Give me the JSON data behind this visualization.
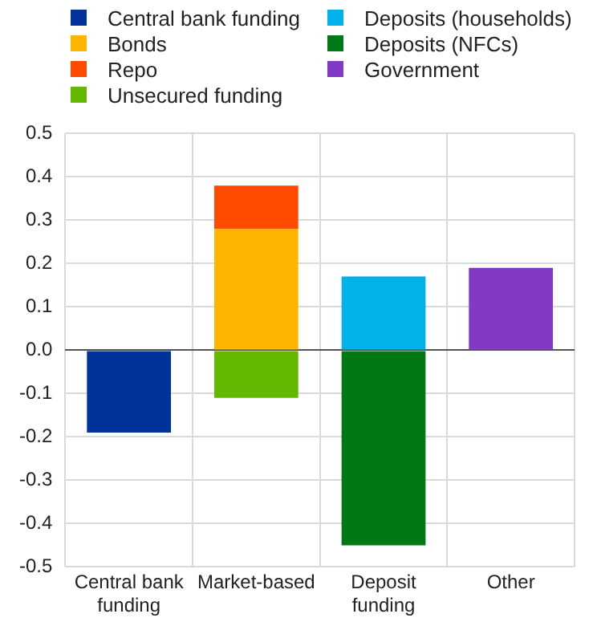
{
  "chart_data": {
    "type": "bar",
    "stacked": true,
    "categories": [
      "Central bank funding",
      "Market-based",
      "Deposit funding",
      "Other"
    ],
    "series": [
      {
        "name": "Central bank funding",
        "color": "#003399",
        "values": [
          -0.19,
          null,
          null,
          null
        ]
      },
      {
        "name": "Bonds",
        "color": "#ffb400",
        "values": [
          null,
          0.28,
          null,
          null
        ]
      },
      {
        "name": "Repo",
        "color": "#ff4b00",
        "values": [
          null,
          0.1,
          null,
          null
        ]
      },
      {
        "name": "Unsecured funding",
        "color": "#65b800",
        "values": [
          null,
          -0.11,
          null,
          null
        ]
      },
      {
        "name": "Deposits (households)",
        "color": "#00b1ea",
        "values": [
          null,
          null,
          0.17,
          null
        ]
      },
      {
        "name": "Deposits (NFCs)",
        "color": "#007816",
        "values": [
          null,
          null,
          -0.45,
          null
        ]
      },
      {
        "name": "Government",
        "color": "#8139c6",
        "values": [
          null,
          null,
          null,
          0.19
        ]
      }
    ],
    "ylim": [
      -0.5,
      0.5
    ],
    "yticks": [
      -0.5,
      -0.4,
      -0.3,
      -0.2,
      -0.1,
      {
        "value": 0,
        "label": "0.0"
      },
      0.1,
      0.2,
      0.3,
      0.4,
      0.5
    ],
    "grid": true,
    "legend": "top"
  }
}
